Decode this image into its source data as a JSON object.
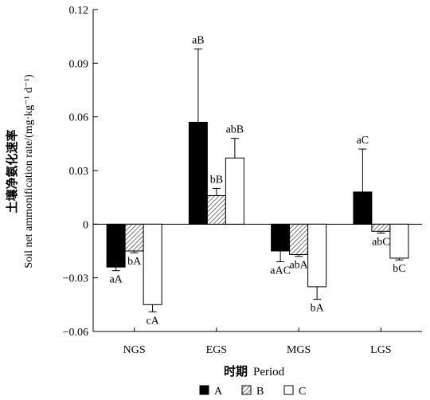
{
  "chart_data": {
    "type": "bar",
    "categories": [
      "NGS",
      "EGS",
      "MGS",
      "LGS"
    ],
    "series": [
      {
        "name": "A",
        "values": [
          -0.024,
          0.057,
          -0.015,
          0.018
        ],
        "errors": [
          0.002,
          0.041,
          0.006,
          0.024
        ],
        "labels": [
          "aA",
          "aB",
          "aAC",
          "aC"
        ],
        "fill": "#000000",
        "pattern": "solid"
      },
      {
        "name": "B",
        "values": [
          -0.015,
          0.016,
          -0.017,
          -0.004
        ],
        "errors": [
          0.001,
          0.004,
          0.001,
          0.001
        ],
        "labels": [
          "bA",
          "bB",
          "abA",
          "abC"
        ],
        "fill": "#ffffff",
        "pattern": "hatch"
      },
      {
        "name": "C",
        "values": [
          -0.045,
          0.037,
          -0.035,
          -0.019
        ],
        "errors": [
          0.004,
          0.011,
          0.007,
          0.001
        ],
        "labels": [
          "cA",
          "abB",
          "bA",
          "bC"
        ],
        "fill": "#ffffff",
        "pattern": "hollow"
      }
    ],
    "title": "",
    "xlabel_cn": "时期",
    "xlabel": "Period",
    "ylabel_cn": "土壤净氨化速率",
    "ylabel": "Soil net ammonification rate/(mg·kg⁻¹ d⁻¹)",
    "ylim": [
      -0.06,
      0.12
    ],
    "yticks": [
      -0.06,
      -0.03,
      0,
      0.03,
      0.06,
      0.09,
      0.12
    ],
    "ytick_labels": [
      "−0.06",
      "−0.03",
      "0",
      "0.03",
      "0.06",
      "0.09",
      "0.12"
    ],
    "grid": false,
    "legend_position": "bottom"
  }
}
